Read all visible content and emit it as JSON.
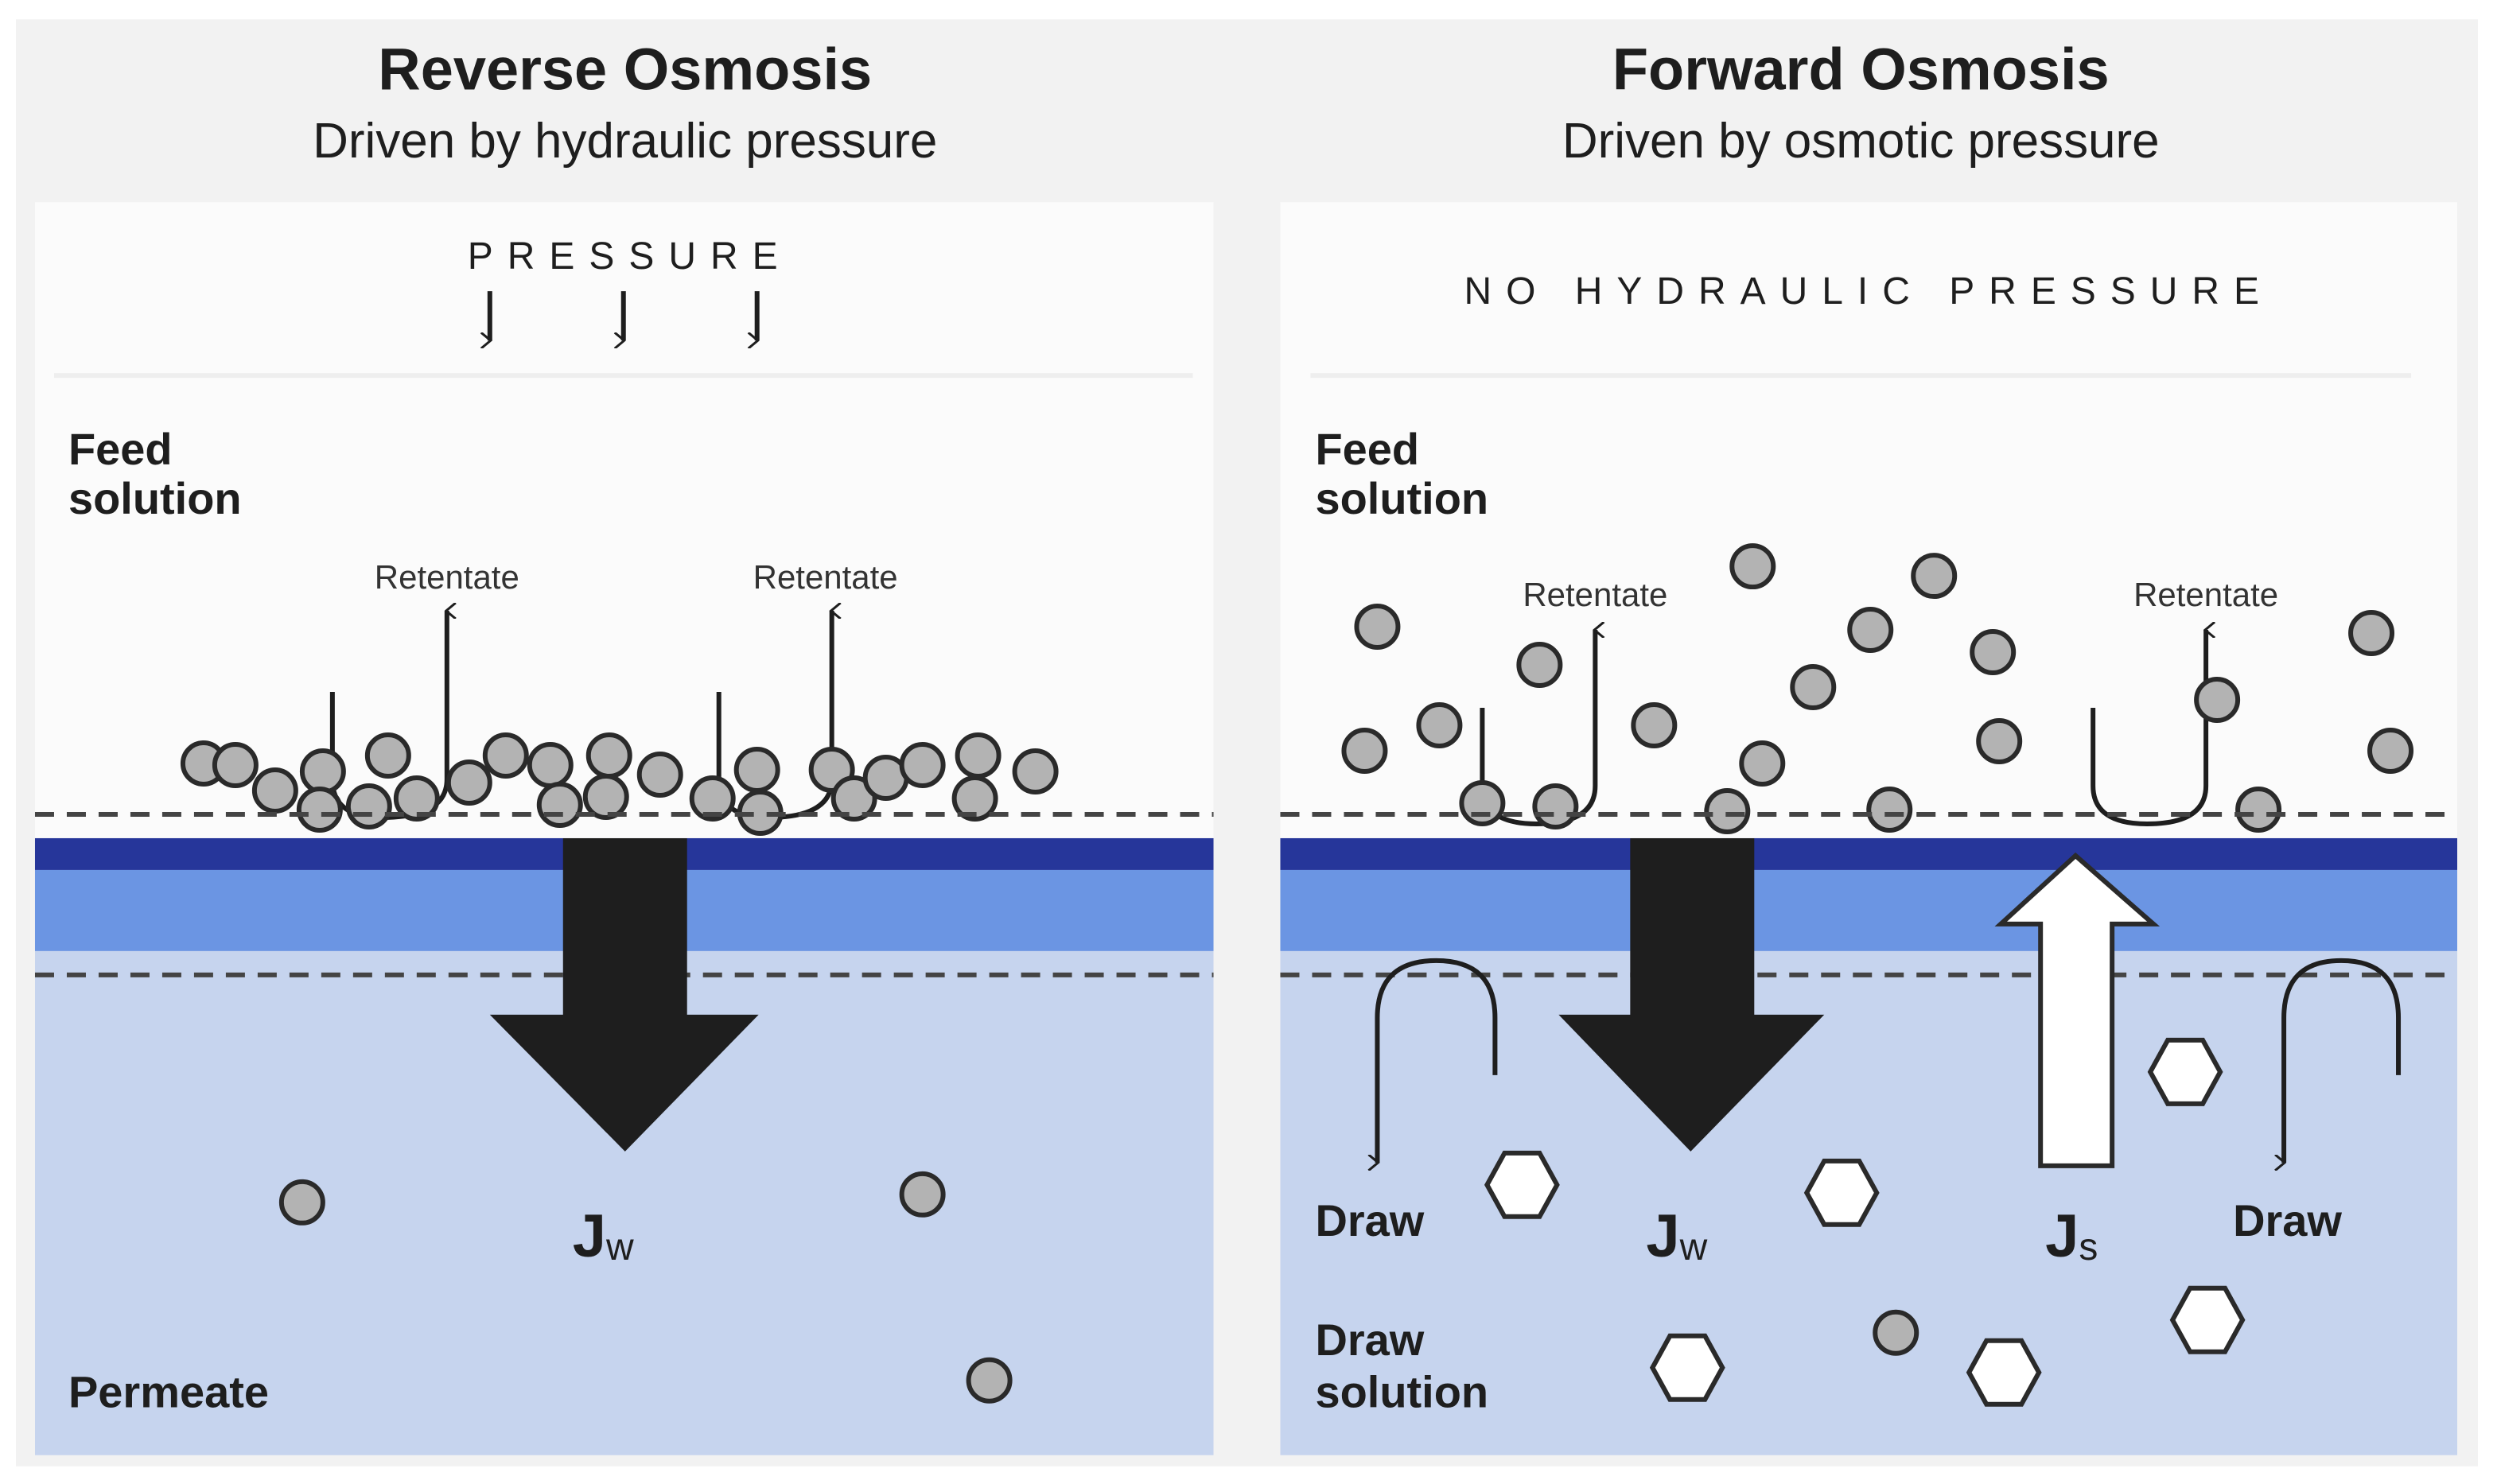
{
  "colors": {
    "background": "#f2f2f2",
    "feed": "#fbfbfb",
    "membrane_active": "#26369a",
    "membrane_support": "#6b95e3",
    "permeate": "#c6d4ee",
    "solute": "#b3b3b3",
    "draw_solute": "#ffffff"
  },
  "reverse_osmosis": {
    "title": "Reverse Osmosis",
    "subtitle": "Driven by hydraulic pressure",
    "pressure_label": "PRESSURE",
    "feed_label_1": "Feed",
    "feed_label_2": "solution",
    "retentate_1": "Retentate",
    "retentate_2": "Retentate",
    "flux_label": "J",
    "flux_sub": "w",
    "permeate_label": "Permeate"
  },
  "forward_osmosis": {
    "title": "Forward Osmosis",
    "subtitle": "Driven by osmotic pressure",
    "pressure_label": "NO HYDRAULIC PRESSURE",
    "feed_label_1": "Feed",
    "feed_label_2": "solution",
    "retentate_1": "Retentate",
    "retentate_2": "Retentate",
    "water_flux_label": "J",
    "water_flux_sub": "w",
    "solute_flux_label": "J",
    "solute_flux_sub": "s",
    "draw_1": "Draw",
    "draw_2": "Draw",
    "draw_solution_1": "Draw",
    "draw_solution_2": "solution"
  }
}
